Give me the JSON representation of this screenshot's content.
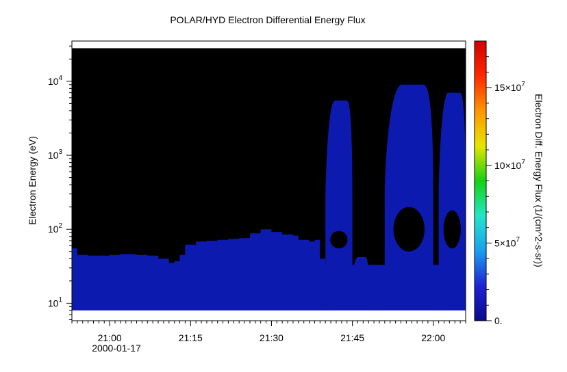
{
  "chart_data": {
    "type": "heatmap",
    "title": "POLAR/HYD  Electron Differential Energy Flux",
    "ylabel": "Electron Energy (eV)",
    "y_scale": "log",
    "y_ticks": [
      {
        "value": 10,
        "label_base": "10",
        "label_exp": "1"
      },
      {
        "value": 100,
        "label_base": "10",
        "label_exp": "2"
      },
      {
        "value": 1000,
        "label_base": "10",
        "label_exp": "3"
      },
      {
        "value": 10000,
        "label_base": "10",
        "label_exp": "4"
      }
    ],
    "ylim_eV": [
      5.8,
      35000
    ],
    "data_energy_range_eV": [
      8,
      28000
    ],
    "x_range": [
      "20:53",
      "22:06"
    ],
    "x_ticks": [
      {
        "time": "21:00",
        "label": "21:00"
      },
      {
        "time": "21:15",
        "label": "21:15"
      },
      {
        "time": "21:30",
        "label": "21:30"
      },
      {
        "time": "21:45",
        "label": "21:45"
      },
      {
        "time": "22:00",
        "label": "22:00"
      }
    ],
    "date_label": "2000-01-17",
    "colorbar": {
      "label": "Electron Diff. Energy Flux (1/(cm^2-s-sr))",
      "range": [
        0,
        18000000
      ],
      "colors": [
        "#0a0a8c",
        "#1f22d6",
        "#1aa0f0",
        "#22e6c8",
        "#14d214",
        "#e6e600",
        "#ff9600",
        "#ff2800",
        "#d20000"
      ],
      "ticks": [
        {
          "value": 0,
          "label": "0.",
          "exp": ""
        },
        {
          "value": 50000000,
          "label": "5×10",
          "exp": "7"
        },
        {
          "value": 100000000,
          "label": "10×10",
          "exp": "7"
        },
        {
          "value": 150000000,
          "label": "15×10",
          "exp": "7"
        }
      ]
    },
    "background_flux_color": "#000000",
    "flux_color": "#0d1ab0",
    "low_energy_upper_edge": [
      {
        "t": "20:53",
        "eV": 55
      },
      {
        "t": "20:54",
        "eV": 45
      },
      {
        "t": "20:56",
        "eV": 44
      },
      {
        "t": "21:00",
        "eV": 45
      },
      {
        "t": "21:02",
        "eV": 46
      },
      {
        "t": "21:05",
        "eV": 45
      },
      {
        "t": "21:07",
        "eV": 44
      },
      {
        "t": "21:09",
        "eV": 40
      },
      {
        "t": "21:11",
        "eV": 35
      },
      {
        "t": "21:12",
        "eV": 37
      },
      {
        "t": "21:13",
        "eV": 45
      },
      {
        "t": "21:14",
        "eV": 62
      },
      {
        "t": "21:16",
        "eV": 68
      },
      {
        "t": "21:18",
        "eV": 70
      },
      {
        "t": "21:20",
        "eV": 72
      },
      {
        "t": "21:22",
        "eV": 74
      },
      {
        "t": "21:24",
        "eV": 76
      },
      {
        "t": "21:26",
        "eV": 88
      },
      {
        "t": "21:28",
        "eV": 100
      },
      {
        "t": "21:30",
        "eV": 92
      },
      {
        "t": "21:32",
        "eV": 85
      },
      {
        "t": "21:34",
        "eV": 82
      },
      {
        "t": "21:35",
        "eV": 72
      },
      {
        "t": "21:37",
        "eV": 68
      },
      {
        "t": "21:38",
        "eV": 72
      },
      {
        "t": "21:39",
        "eV": 40
      },
      {
        "t": "21:40",
        "eV": 33
      }
    ],
    "bursts": [
      {
        "start": "21:40",
        "end": "21:45",
        "peak_eV": 5500,
        "hole_eV": [
          55,
          95
        ]
      },
      {
        "start": "21:45",
        "end": "21:48",
        "peak_eV": 42,
        "hole_eV": null
      },
      {
        "start": "21:51",
        "end": "22:00",
        "peak_eV": 9000,
        "hole_eV": [
          50,
          200
        ]
      },
      {
        "start": "22:01",
        "end": "22:06",
        "peak_eV": 7000,
        "hole_eV": [
          55,
          180
        ]
      }
    ]
  }
}
